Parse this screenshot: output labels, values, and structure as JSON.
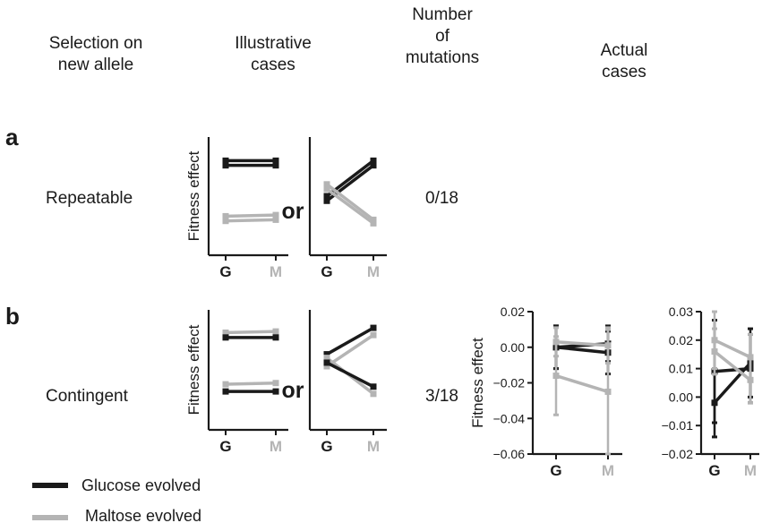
{
  "colors": {
    "glucose": "#1a1a1a",
    "maltose": "#b4b4b4",
    "axis": "#1a1a1a"
  },
  "headers": {
    "selection": [
      "Selection on",
      "new allele"
    ],
    "illustrative": [
      "Illustrative",
      "cases"
    ],
    "number": [
      "Number",
      "of",
      "mutations"
    ],
    "actual": [
      "Actual",
      "cases"
    ]
  },
  "rows": [
    {
      "letter": "a",
      "label": "Repeatable",
      "count": "0/18",
      "or_word": "or"
    },
    {
      "letter": "b",
      "label": "Contingent",
      "count": "3/18",
      "or_word": "or"
    }
  ],
  "illustrative_axis": {
    "ylabel": "Fitness effect",
    "categories": [
      "G",
      "M"
    ]
  },
  "legend": [
    {
      "label": "Glucose evolved",
      "color": "#1a1a1a"
    },
    {
      "label": "Maltose evolved",
      "color": "#b4b4b4"
    }
  ],
  "chart_data": [
    {
      "type": "line",
      "panel": "a-left",
      "categories": [
        "G",
        "M"
      ],
      "ylim": [
        0,
        1
      ],
      "series": [
        {
          "group": "glucose",
          "values": [
            0.8,
            0.8
          ]
        },
        {
          "group": "glucose",
          "values": [
            0.76,
            0.76
          ]
        },
        {
          "group": "maltose",
          "values": [
            0.33,
            0.34
          ]
        },
        {
          "group": "maltose",
          "values": [
            0.29,
            0.3
          ]
        }
      ]
    },
    {
      "type": "line",
      "panel": "a-right",
      "categories": [
        "G",
        "M"
      ],
      "ylim": [
        0,
        1
      ],
      "series": [
        {
          "group": "glucose",
          "values": [
            0.5,
            0.8
          ]
        },
        {
          "group": "glucose",
          "values": [
            0.46,
            0.76
          ]
        },
        {
          "group": "maltose",
          "values": [
            0.6,
            0.3
          ]
        },
        {
          "group": "maltose",
          "values": [
            0.56,
            0.27
          ]
        }
      ]
    },
    {
      "type": "line",
      "panel": "b-left",
      "categories": [
        "G",
        "M"
      ],
      "ylim": [
        0,
        1
      ],
      "series": [
        {
          "group": "maltose",
          "values": [
            0.81,
            0.82
          ]
        },
        {
          "group": "glucose",
          "values": [
            0.77,
            0.77
          ]
        },
        {
          "group": "maltose",
          "values": [
            0.38,
            0.39
          ]
        },
        {
          "group": "glucose",
          "values": [
            0.32,
            0.32
          ]
        }
      ]
    },
    {
      "type": "line",
      "panel": "b-right",
      "categories": [
        "G",
        "M"
      ],
      "ylim": [
        0,
        1
      ],
      "series": [
        {
          "group": "glucose",
          "values": [
            0.63,
            0.85
          ]
        },
        {
          "group": "maltose",
          "values": [
            0.53,
            0.79
          ]
        },
        {
          "group": "maltose",
          "values": [
            0.6,
            0.3
          ]
        },
        {
          "group": "glucose",
          "values": [
            0.56,
            0.36
          ]
        }
      ]
    },
    {
      "type": "line",
      "panel": "actual-1",
      "categories": [
        "G",
        "M"
      ],
      "ylabel": "Fitness effect",
      "ylim": [
        -0.06,
        0.02
      ],
      "yticks": [
        "0.02",
        "0.00",
        "−0.02",
        "−0.04",
        "−0.06"
      ],
      "series": [
        {
          "group": "glucose",
          "values": [
            0.0,
            -0.003
          ],
          "errors": [
            0.012,
            0.012
          ]
        },
        {
          "group": "glucose",
          "values": [
            0.0,
            0.002
          ],
          "errors": [
            0.012,
            0.01
          ]
        },
        {
          "group": "maltose",
          "values": [
            0.003,
            0.001
          ],
          "errors": [
            0.008,
            0.01
          ]
        },
        {
          "group": "maltose",
          "values": [
            -0.016,
            -0.025
          ],
          "errors": [
            0.022,
            0.035
          ]
        }
      ]
    },
    {
      "type": "line",
      "panel": "actual-2",
      "categories": [
        "G",
        "M"
      ],
      "ylim": [
        -0.02,
        0.03
      ],
      "yticks": [
        "0.03",
        "0.02",
        "0.01",
        "0.00",
        "−0.01",
        "−0.02"
      ],
      "series": [
        {
          "group": "glucose",
          "values": [
            0.009,
            0.01
          ],
          "errors": [
            0.018,
            0.012
          ]
        },
        {
          "group": "glucose",
          "values": [
            -0.002,
            0.012
          ],
          "errors": [
            0.012,
            0.012
          ]
        },
        {
          "group": "maltose",
          "values": [
            0.02,
            0.014
          ],
          "errors": [
            0.01,
            0.008
          ]
        },
        {
          "group": "maltose",
          "values": [
            0.016,
            0.006
          ],
          "errors": [
            0.008,
            0.008
          ]
        }
      ]
    }
  ]
}
